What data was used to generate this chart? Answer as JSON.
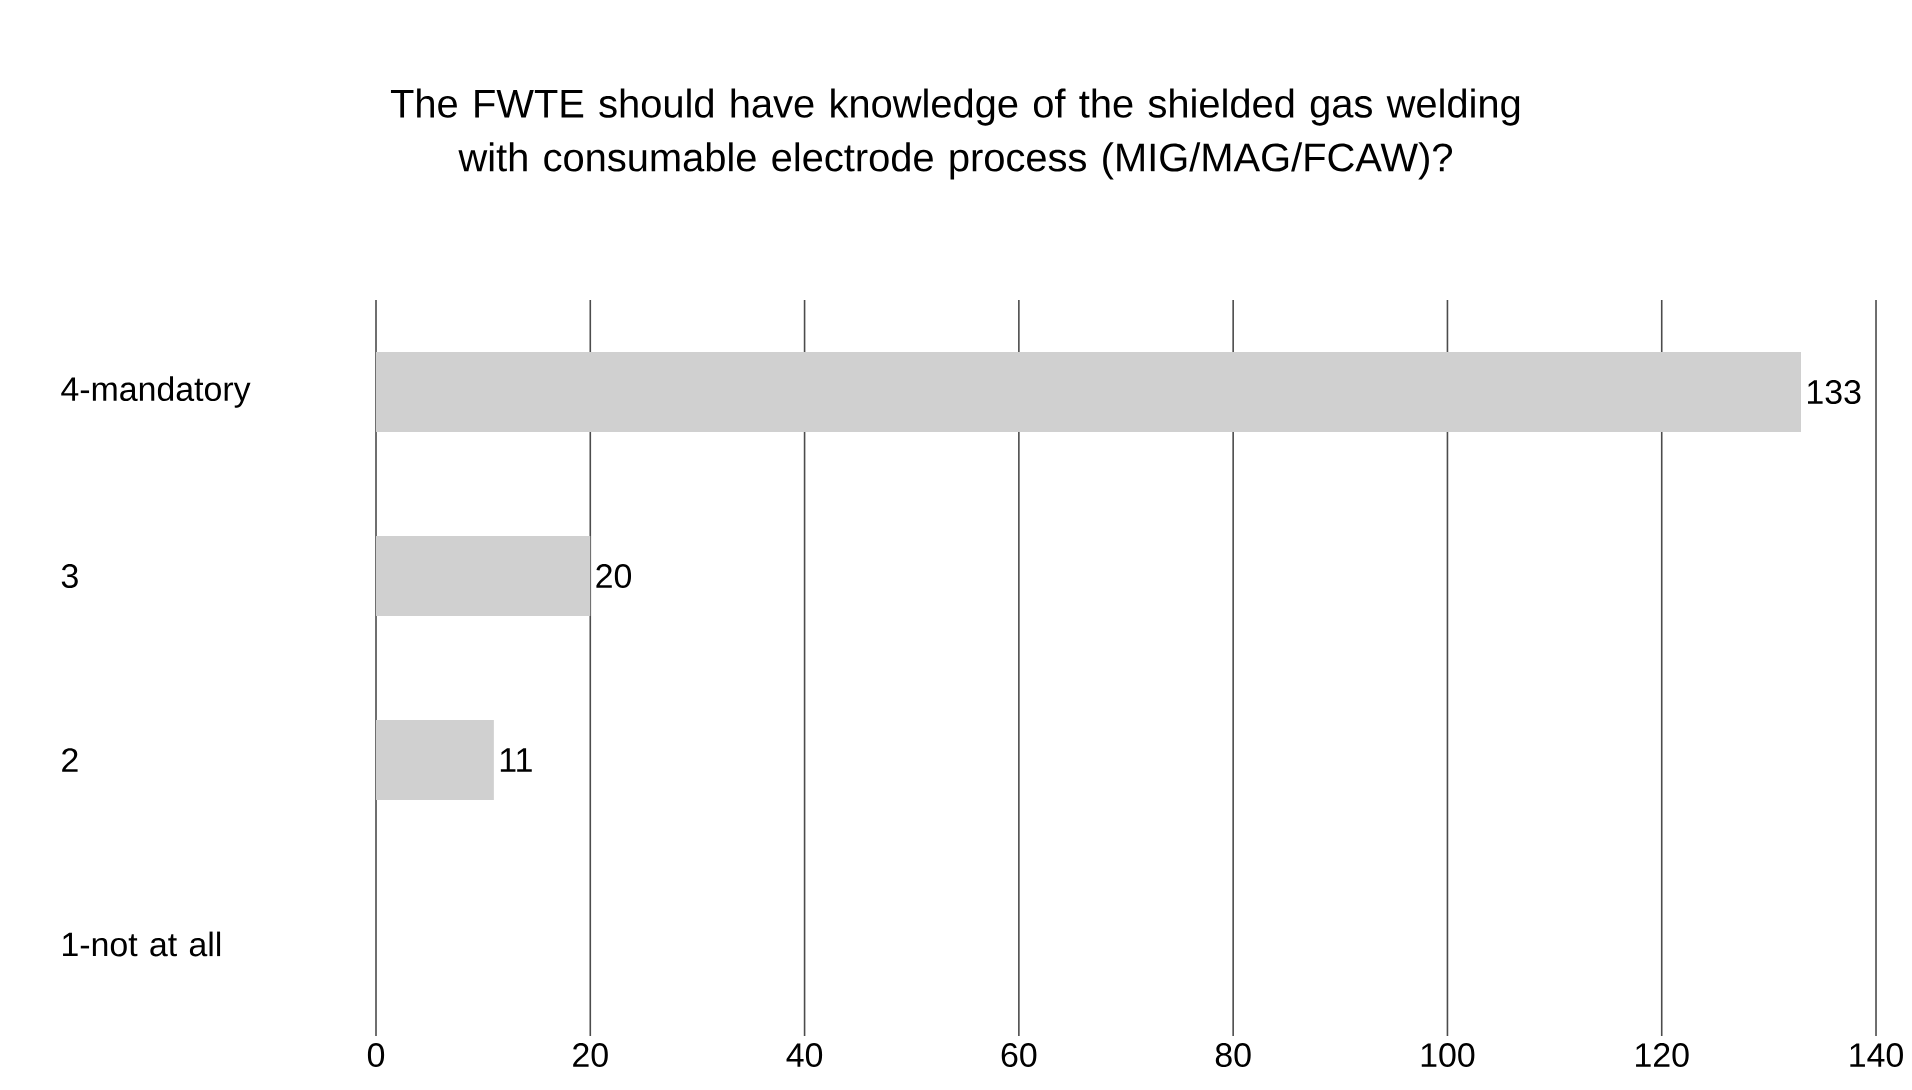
{
  "chart_data": {
    "type": "bar",
    "orientation": "horizontal",
    "title": "The FWTE should have knowledge of the shielded gas welding with consumable electrode process (MIG/MAG/FCAW)?",
    "categories": [
      "4-mandatory",
      "3",
      "2",
      "1-not at all"
    ],
    "values": [
      133,
      20,
      11,
      0
    ],
    "value_labels": [
      "133",
      "20",
      "11",
      null
    ],
    "color": "#d0d0d0",
    "xlim": [
      0,
      140
    ],
    "xticks": [
      0,
      20,
      40,
      60,
      80,
      100,
      120,
      140
    ],
    "grid": "x"
  }
}
